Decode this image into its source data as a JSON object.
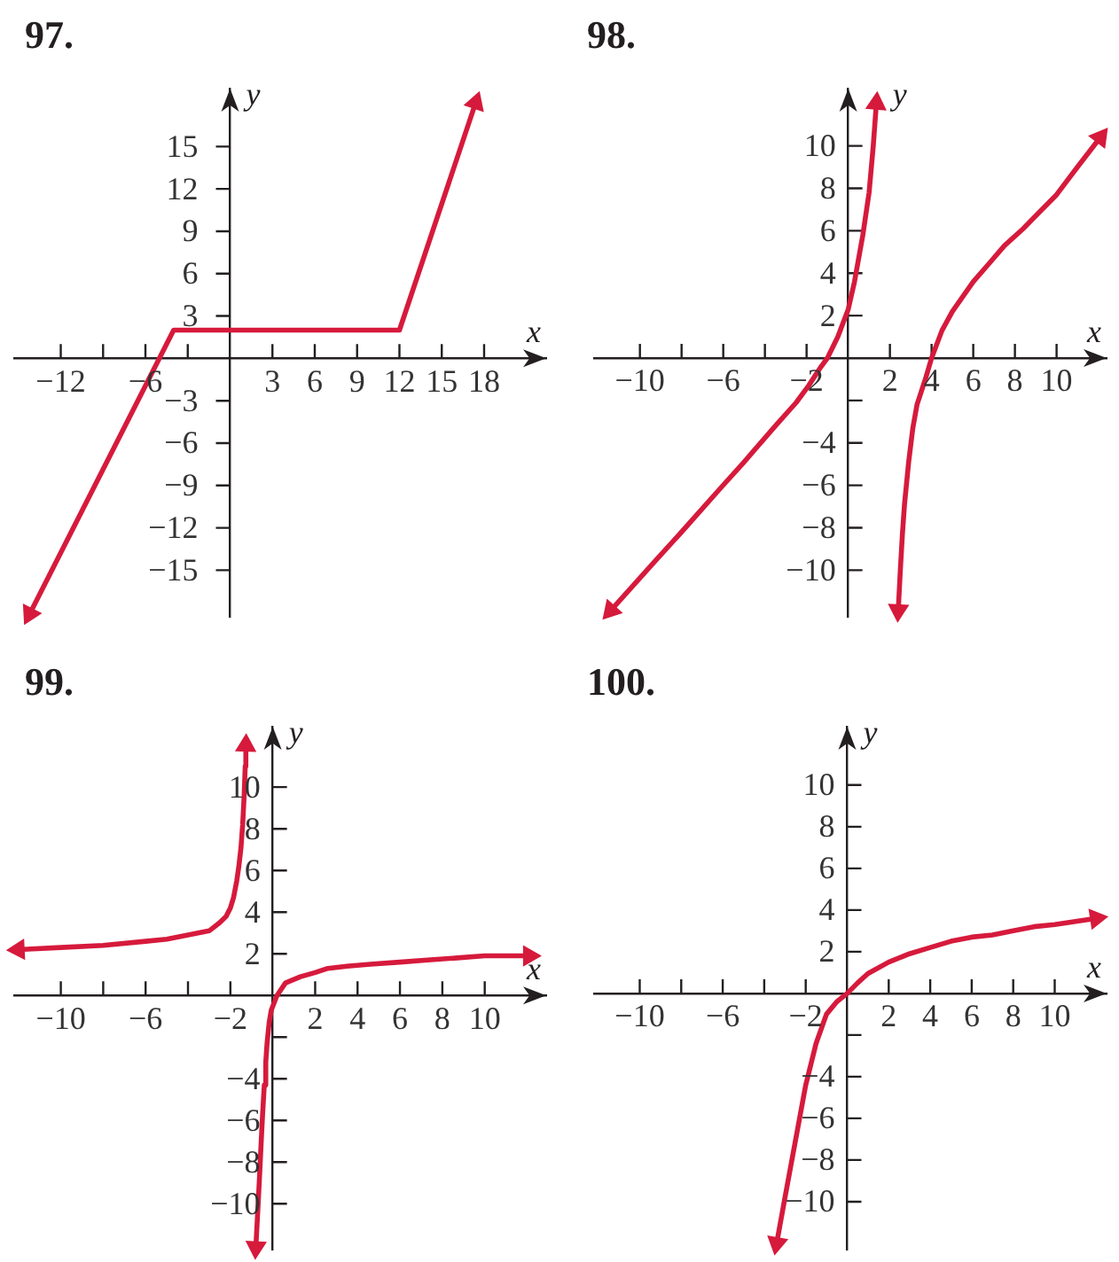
{
  "chart_data": [
    {
      "type": "line",
      "title": "97.",
      "xlabel": "x",
      "ylabel": "y",
      "xlim": [
        -15.3,
        22.4
      ],
      "ylim": [
        -18.3,
        19.1
      ],
      "xticks": [
        {
          "value": -12,
          "label": "−12"
        },
        {
          "value": -9,
          "label": null
        },
        {
          "value": -6,
          "label": "−6"
        },
        {
          "value": -3,
          "label": null
        },
        3,
        6,
        9,
        12,
        15,
        18
      ],
      "yticks": [
        15,
        12,
        9,
        6,
        3,
        {
          "value": -3,
          "label": "−3"
        },
        {
          "value": -6,
          "label": "−6"
        },
        {
          "value": -9,
          "label": "−9"
        },
        {
          "value": -12,
          "label": "−12"
        },
        {
          "value": -15,
          "label": "−15"
        }
      ],
      "series": [
        {
          "color": "#d61a3c",
          "x": [
            -14.2,
            -4,
            12,
            17.4
          ],
          "values": [
            -18.1,
            2,
            2,
            18.1
          ]
        }
      ]
    },
    {
      "type": "line",
      "title": "98.",
      "xlabel": "x",
      "ylabel": "y",
      "xlim": [
        -12.2,
        12.4
      ],
      "ylim": [
        -12.2,
        12.7
      ],
      "xticks": [
        {
          "value": -10,
          "label": "−10"
        },
        {
          "value": -8,
          "label": null
        },
        {
          "value": -6,
          "label": "−6"
        },
        {
          "value": -4,
          "label": null
        },
        {
          "value": -2,
          "label": "−2"
        },
        2,
        4,
        6,
        8,
        10
      ],
      "yticks": [
        10,
        8,
        6,
        4,
        2,
        {
          "value": -2,
          "label": null
        },
        {
          "value": -4,
          "label": "−4"
        },
        {
          "value": -6,
          "label": "−6"
        },
        {
          "value": -8,
          "label": "−8"
        },
        {
          "value": -10,
          "label": "−10"
        }
      ],
      "series": [
        {
          "color": "#d61a3c",
          "x": [
            -11.4,
            -9.3,
            -8,
            -6.1,
            -5,
            -3.5,
            -2.5,
            -1.9,
            -1.3,
            -1,
            -0.5,
            0,
            0.3,
            0.7,
            1,
            1.2,
            1.35
          ],
          "values": [
            -11.9,
            -9.6,
            -8.2,
            -6.1,
            -4.9,
            -3.2,
            -2.1,
            -1.3,
            -0.4,
            0,
            1,
            2.3,
            3.6,
            5.8,
            7.8,
            10,
            12
          ]
        },
        {
          "color": "#d61a3c",
          "x": [
            2.4,
            2.5,
            2.6,
            2.7,
            2.9,
            3.1,
            3.3,
            3.7,
            4,
            4.5,
            5,
            5.5,
            6,
            6.8,
            7.5,
            8.4,
            9.2,
            10,
            11,
            12.1
          ],
          "values": [
            -11.9,
            -10,
            -8.3,
            -6.9,
            -4.9,
            -3.3,
            -2.2,
            -1,
            0,
            1.3,
            2.2,
            2.9,
            3.6,
            4.5,
            5.3,
            6.1,
            6.9,
            7.7,
            9,
            10.4
          ]
        }
      ]
    },
    {
      "type": "line",
      "title": "99.",
      "xlabel": "x",
      "ylabel": "y",
      "xlim": [
        -12.2,
        12.9
      ],
      "ylim": [
        -12.2,
        12.9
      ],
      "xticks": [
        {
          "value": -10,
          "label": "−10"
        },
        {
          "value": -8,
          "label": null
        },
        {
          "value": -6,
          "label": "−6"
        },
        {
          "value": -4,
          "label": null
        },
        {
          "value": -2,
          "label": "−2"
        },
        2,
        4,
        6,
        8,
        10
      ],
      "yticks": [
        10,
        8,
        6,
        4,
        2,
        {
          "value": -2,
          "label": null
        },
        {
          "value": -4,
          "label": "−4"
        },
        {
          "value": -6,
          "label": "−6"
        },
        {
          "value": -8,
          "label": "−8"
        },
        {
          "value": -10,
          "label": "−10"
        }
      ],
      "series": [
        {
          "color": "#d61a3c",
          "x": [
            -12,
            -10,
            -8,
            -6,
            -5,
            -4,
            -3,
            -2.5,
            -2.2,
            -2,
            -1.85,
            -1.7,
            -1.6,
            -1.5,
            -1.42,
            -1.35,
            -1.3,
            -1.27
          ],
          "values": [
            2.2,
            2.3,
            2.4,
            2.6,
            2.7,
            2.9,
            3.1,
            3.5,
            3.8,
            4.2,
            4.7,
            5.5,
            6.2,
            7.1,
            8.2,
            9.6,
            11,
            12
          ]
        },
        {
          "color": "#d61a3c",
          "x": [
            -0.8,
            -0.7,
            -0.62,
            -0.55,
            -0.48,
            -0.4,
            -0.33,
            -0.27,
            -0.17,
            -0.07,
            0.2,
            0.6,
            1.3,
            2,
            2.6,
            3.5,
            4.6,
            6,
            7.3,
            8.7,
            10,
            12.1
          ],
          "values": [
            -12.1,
            -10.2,
            -8.6,
            -7.1,
            -5.7,
            -4.3,
            -3.2,
            -2.3,
            -1.3,
            -0.7,
            0,
            0.6,
            0.9,
            1.1,
            1.3,
            1.4,
            1.5,
            1.6,
            1.7,
            1.8,
            1.9,
            1.9
          ]
        }
      ]
    },
    {
      "type": "line",
      "title": "100.",
      "xlabel": "x",
      "ylabel": "y",
      "xlim": [
        -12.2,
        12.5
      ],
      "ylim": [
        -12.3,
        12.8
      ],
      "xticks": [
        {
          "value": -10,
          "label": "−10"
        },
        {
          "value": -8,
          "label": null
        },
        {
          "value": -6,
          "label": "−6"
        },
        {
          "value": -4,
          "label": null
        },
        {
          "value": -2,
          "label": "−2"
        },
        2,
        4,
        6,
        8,
        10
      ],
      "yticks": [
        10,
        8,
        6,
        4,
        2,
        {
          "value": -2,
          "label": null
        },
        {
          "value": -4,
          "label": "−4"
        },
        {
          "value": -6,
          "label": "−6"
        },
        {
          "value": -8,
          "label": "−8"
        },
        {
          "value": -10,
          "label": "−10"
        }
      ],
      "series": [
        {
          "color": "#d61a3c",
          "x": [
            -3.4,
            -3,
            -2.5,
            -2,
            -1.5,
            -1,
            -0.5,
            0,
            0.5,
            1,
            2,
            3,
            4,
            5,
            6,
            7,
            8,
            9,
            10,
            12
          ],
          "values": [
            -12,
            -9.8,
            -7.1,
            -4.4,
            -2.4,
            -1,
            -0.4,
            0,
            0.5,
            0.95,
            1.5,
            1.9,
            2.2,
            2.5,
            2.7,
            2.8,
            3,
            3.2,
            3.3,
            3.6
          ]
        }
      ]
    }
  ]
}
